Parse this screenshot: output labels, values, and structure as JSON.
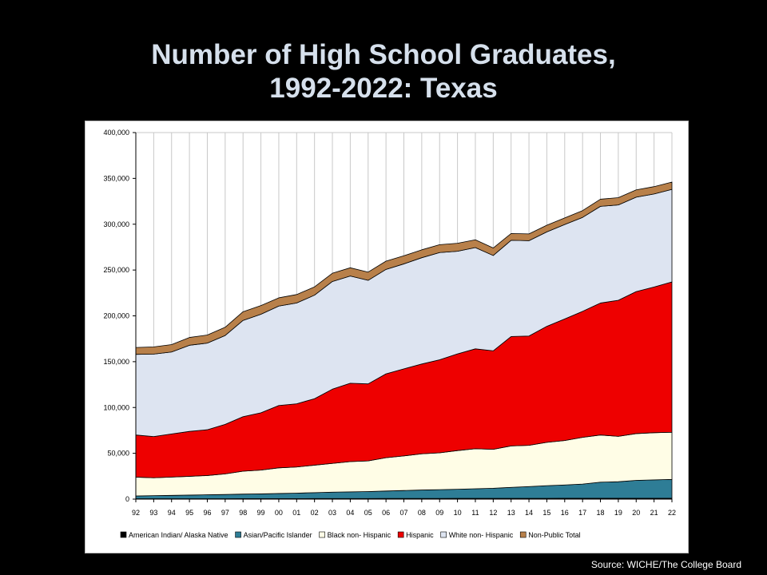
{
  "page": {
    "title_line1": "Number of High School Graduates,",
    "title_line2": "1992-2022:  Texas",
    "source": "Source: WICHE/The  College Board"
  },
  "colors": {
    "background": "#000000",
    "title": "#d6e0ec",
    "american_indian": "#000000",
    "asian": "#2e7d96",
    "black": "#fffde6",
    "hispanic": "#ee0000",
    "white": "#dde4f1",
    "nonpublic": "#b8804a"
  },
  "chart_data": {
    "type": "area",
    "stacked": true,
    "title": "",
    "xlabel": "",
    "ylabel": "",
    "ylim": [
      0,
      400000
    ],
    "yticks": [
      0,
      50000,
      100000,
      150000,
      200000,
      250000,
      300000,
      350000,
      400000
    ],
    "ytick_labels": [
      "0",
      "50,000",
      "100,000",
      "150,000",
      "200,000",
      "250,000",
      "300,000",
      "350,000",
      "400,000"
    ],
    "grid": "vertical",
    "legend_position": "bottom",
    "categories": [
      "92",
      "93",
      "94",
      "95",
      "96",
      "97",
      "98",
      "99",
      "00",
      "01",
      "02",
      "03",
      "04",
      "05",
      "06",
      "07",
      "08",
      "09",
      "10",
      "11",
      "12",
      "13",
      "14",
      "15",
      "16",
      "17",
      "18",
      "19",
      "20",
      "21",
      "22"
    ],
    "series": [
      {
        "name": "American Indian/ Alaska Native",
        "color_key": "american_indian",
        "values": [
          400,
          400,
          400,
          400,
          450,
          450,
          500,
          500,
          550,
          550,
          600,
          600,
          650,
          650,
          700,
          700,
          750,
          750,
          800,
          800,
          850,
          850,
          900,
          900,
          950,
          950,
          1000,
          1000,
          1000,
          1000,
          1000
        ]
      },
      {
        "name": "Asian/Pacific Islander",
        "color_key": "asian",
        "values": [
          3100,
          3400,
          3700,
          4000,
          4300,
          4600,
          5000,
          5200,
          5600,
          6000,
          6500,
          7000,
          7300,
          7600,
          8200,
          8700,
          9200,
          9600,
          10000,
          10500,
          11000,
          12000,
          12800,
          13800,
          14500,
          15500,
          17500,
          18000,
          19500,
          20000,
          20500
        ]
      },
      {
        "name": "Black non- Hispanic",
        "color_key": "black",
        "values": [
          20500,
          19500,
          20000,
          20500,
          21000,
          22500,
          25000,
          26000,
          28000,
          28500,
          30000,
          31400,
          33000,
          33500,
          36300,
          37800,
          39500,
          40200,
          42200,
          43700,
          42500,
          45200,
          45000,
          47300,
          48500,
          51000,
          51500,
          49500,
          51000,
          51500,
          51500
        ]
      },
      {
        "name": "Hispanic",
        "color_key": "hispanic",
        "values": [
          46000,
          45000,
          47000,
          49000,
          50000,
          54000,
          59500,
          62500,
          68000,
          69000,
          72500,
          81000,
          85500,
          84000,
          91500,
          95000,
          98000,
          101500,
          105500,
          109000,
          107500,
          119400,
          119300,
          126600,
          132700,
          137500,
          144000,
          148500,
          155000,
          159000,
          164000
        ]
      },
      {
        "name": "White non- Hispanic",
        "color_key": "white",
        "values": [
          88000,
          90000,
          89500,
          94000,
          94500,
          97000,
          105000,
          107500,
          108500,
          110000,
          113000,
          117500,
          117000,
          113000,
          114000,
          114500,
          116000,
          117000,
          112000,
          110500,
          104000,
          105000,
          104000,
          103000,
          103000,
          102500,
          105500,
          104000,
          103000,
          101500,
          101000
        ]
      },
      {
        "name": "Non-Public Total",
        "color_key": "nonpublic",
        "values": [
          7500,
          7800,
          8000,
          8500,
          8800,
          9000,
          9500,
          9500,
          9000,
          9200,
          9000,
          9000,
          9000,
          9000,
          9000,
          8900,
          8600,
          8600,
          8700,
          8500,
          8200,
          7400,
          7400,
          7300,
          7200,
          7400,
          7800,
          8000,
          8000,
          8000,
          8000
        ]
      }
    ]
  }
}
